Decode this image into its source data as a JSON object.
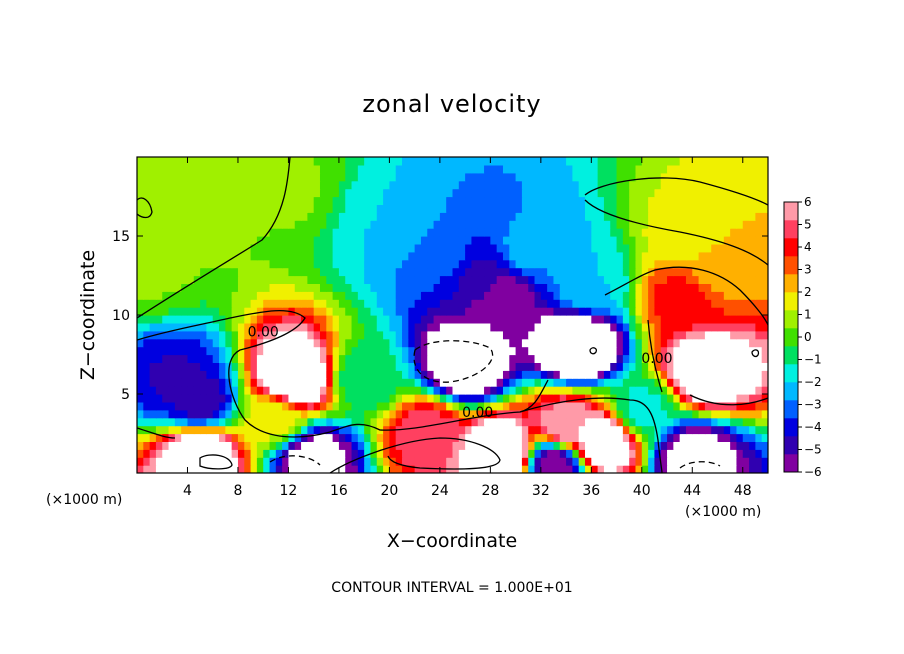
{
  "chart_data": {
    "type": "heatmap",
    "title": "zonal velocity",
    "xlabel": "X−coordinate",
    "ylabel": "Z−coordinate",
    "x_unit_left": "(×1000 m)",
    "x_unit_right": "(×1000 m)",
    "note": "CONTOUR INTERVAL = 1.000E+01",
    "xlim": [
      0,
      50
    ],
    "ylim": [
      0,
      20
    ],
    "x_ticks": [
      4,
      8,
      12,
      16,
      20,
      24,
      28,
      32,
      36,
      40,
      44,
      48
    ],
    "x_tick_labels": [
      "4",
      "8",
      "12",
      "16",
      "20",
      "24",
      "28",
      "32",
      "36",
      "40",
      "44",
      "48"
    ],
    "y_ticks": [
      5,
      10,
      15
    ],
    "y_tick_labels": [
      "5",
      "10",
      "15"
    ],
    "contour_labels": [
      {
        "text": "0.00",
        "x": 10.0,
        "y": 8.9
      },
      {
        "text": "0.00",
        "x": 27.0,
        "y": 3.8
      },
      {
        "text": "0.00",
        "x": 41.2,
        "y": 7.2
      }
    ],
    "colorbar": {
      "vmin": -6,
      "vmax": 6,
      "ticks": [
        6,
        5,
        4,
        3,
        2,
        1,
        0,
        -1,
        -2,
        -3,
        -4,
        -5,
        -6
      ],
      "tick_labels": [
        "6",
        "5",
        "4",
        "3",
        "2",
        "1",
        "0",
        "−1",
        "−2",
        "−3",
        "−4",
        "−5",
        "−6"
      ],
      "out_of_range_color": "#ffffff"
    },
    "field_features": [
      {
        "x": 2,
        "y": 17.5,
        "value": 1.0
      },
      {
        "x": 1,
        "y": 13,
        "value": 0.5
      },
      {
        "x": 12,
        "y": 18,
        "value": 0.5
      },
      {
        "x": 20,
        "y": 16,
        "value": -2.0
      },
      {
        "x": 24,
        "y": 14,
        "value": -3.0
      },
      {
        "x": 27,
        "y": 12.5,
        "value": -4.5
      },
      {
        "x": 29,
        "y": 11.3,
        "value": -6.0
      },
      {
        "x": 31,
        "y": 14,
        "value": -2.5
      },
      {
        "x": 36,
        "y": 12,
        "value": -2.0
      },
      {
        "x": 44,
        "y": 15,
        "value": 1.5
      },
      {
        "x": 46,
        "y": 13,
        "value": 2.5
      },
      {
        "x": 43,
        "y": 11,
        "value": 4.0
      },
      {
        "x": 3,
        "y": 6,
        "value": -4.5
      },
      {
        "x": 5,
        "y": 4.5,
        "value": -5.0
      },
      {
        "x": 12.5,
        "y": 6,
        "value": 9.0
      },
      {
        "x": 26,
        "y": 7,
        "value": -8.0
      },
      {
        "x": 35,
        "y": 8,
        "value": -9.0
      },
      {
        "x": 45,
        "y": 6.5,
        "value": 8.0
      },
      {
        "x": 23,
        "y": 2.5,
        "value": 5.0
      },
      {
        "x": 29,
        "y": 1.2,
        "value": 9.0
      },
      {
        "x": 34,
        "y": 3,
        "value": 6.0
      },
      {
        "x": 37,
        "y": 2,
        "value": 8.0
      },
      {
        "x": 5,
        "y": 1.2,
        "value": 8.0
      },
      {
        "x": 14,
        "y": 1.0,
        "value": -7.0
      },
      {
        "x": 33,
        "y": 0.6,
        "value": -6.0
      },
      {
        "x": 44,
        "y": 1.0,
        "value": -7.0
      },
      {
        "x": 11,
        "y": 3.5,
        "value": 1.5
      },
      {
        "x": 18,
        "y": 6,
        "value": -1.0
      },
      {
        "x": 40,
        "y": 4,
        "value": -1.5
      }
    ]
  }
}
